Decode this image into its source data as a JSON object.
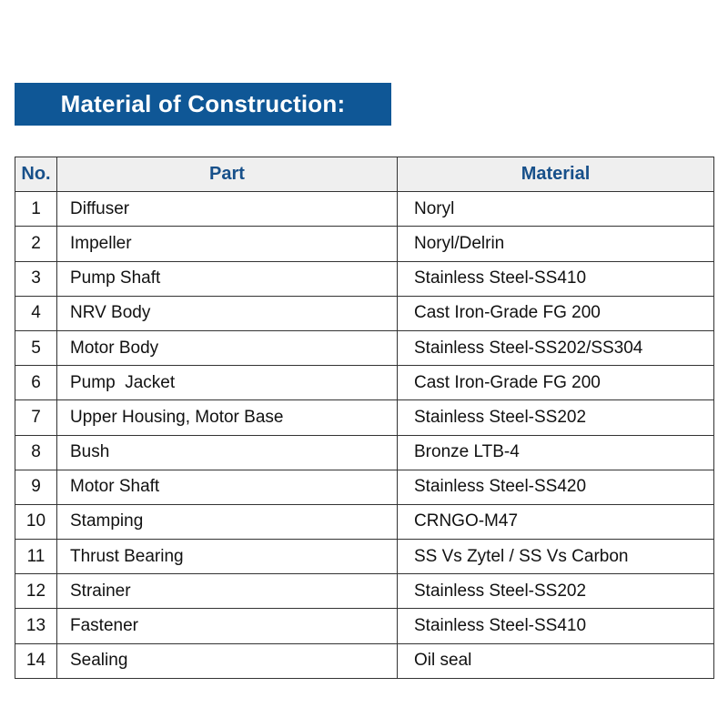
{
  "title": "Material of Construction:",
  "table": {
    "headers": [
      "No.",
      "Part",
      "Material"
    ],
    "rows": [
      [
        "1",
        "Diffuser",
        "Noryl"
      ],
      [
        "2",
        "Impeller",
        "Noryl/Delrin"
      ],
      [
        "3",
        "Pump Shaft",
        "Stainless Steel-SS410"
      ],
      [
        "4",
        "NRV Body",
        "Cast Iron-Grade FG 200"
      ],
      [
        "5",
        "Motor Body",
        "Stainless Steel-SS202/SS304"
      ],
      [
        "6",
        "Pump  Jacket",
        "Cast Iron-Grade FG 200"
      ],
      [
        "7",
        "Upper Housing, Motor Base",
        "Stainless Steel-SS202"
      ],
      [
        "8",
        "Bush",
        "Bronze LTB-4"
      ],
      [
        "9",
        "Motor Shaft",
        "Stainless Steel-SS420"
      ],
      [
        "10",
        "Stamping",
        "CRNGO-M47"
      ],
      [
        "11",
        "Thrust Bearing",
        "SS Vs Zytel / SS Vs Carbon"
      ],
      [
        "12",
        "Strainer",
        "Stainless Steel-SS202"
      ],
      [
        "13",
        "Fastener",
        "Stainless Steel-SS410"
      ],
      [
        "14",
        "Sealing",
        "Oil seal"
      ]
    ]
  },
  "colors": {
    "banner": "#0f5796",
    "header_text": "#17508a",
    "header_bg": "#efefef"
  }
}
